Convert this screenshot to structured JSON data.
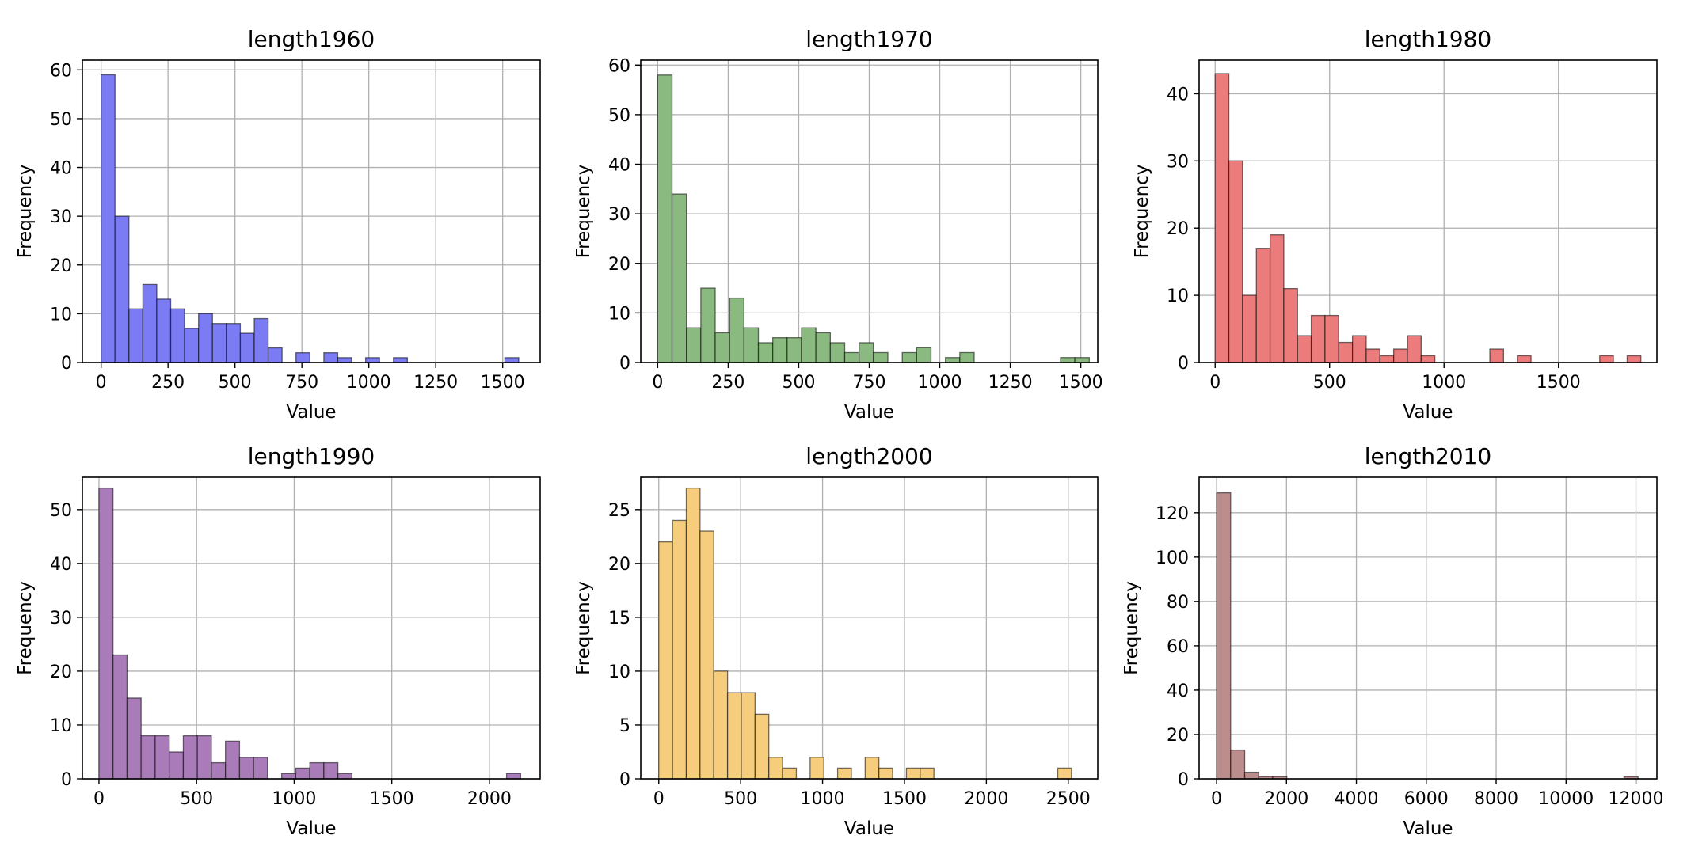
{
  "chart_data": [
    {
      "type": "bar",
      "title": "length1960",
      "xlabel": "Value",
      "ylabel": "Frequency",
      "color": "#7b7bf3",
      "grid": true,
      "xlim": [
        -70,
        1640
      ],
      "ylim": [
        0,
        62
      ],
      "xticks": [
        0,
        250,
        500,
        750,
        1000,
        1250,
        1500
      ],
      "yticks": [
        0,
        10,
        20,
        30,
        40,
        50,
        60
      ],
      "bin_start": 0,
      "bin_width": 52,
      "values": [
        59,
        30,
        11,
        16,
        13,
        11,
        7,
        10,
        8,
        8,
        6,
        9,
        3,
        0,
        2,
        0,
        2,
        1,
        0,
        1,
        0,
        1,
        0,
        0,
        0,
        0,
        0,
        0,
        0,
        1
      ]
    },
    {
      "type": "bar",
      "title": "length1970",
      "xlabel": "Value",
      "ylabel": "Frequency",
      "color": "#8bba80",
      "grid": true,
      "xlim": [
        -60,
        1560
      ],
      "ylim": [
        0,
        61
      ],
      "xticks": [
        0,
        250,
        500,
        750,
        1000,
        1250,
        1500
      ],
      "yticks": [
        0,
        10,
        20,
        30,
        40,
        50,
        60
      ],
      "bin_start": 0,
      "bin_width": 51,
      "values": [
        58,
        34,
        7,
        15,
        6,
        13,
        7,
        4,
        5,
        5,
        7,
        6,
        4,
        2,
        4,
        2,
        0,
        2,
        3,
        0,
        1,
        2,
        0,
        0,
        0,
        0,
        0,
        0,
        1,
        1
      ]
    },
    {
      "type": "bar",
      "title": "length1980",
      "xlabel": "Value",
      "ylabel": "Frequency",
      "color": "#ec7b7b",
      "grid": true,
      "xlim": [
        -70,
        1930
      ],
      "ylim": [
        0,
        45
      ],
      "xticks": [
        0,
        500,
        1000,
        1500
      ],
      "yticks": [
        0,
        10,
        20,
        30,
        40
      ],
      "bin_start": 0,
      "bin_width": 60,
      "values": [
        43,
        30,
        10,
        17,
        19,
        11,
        4,
        7,
        7,
        3,
        4,
        2,
        1,
        2,
        4,
        1,
        0,
        0,
        0,
        0,
        2,
        0,
        1,
        0,
        0,
        0,
        0,
        0,
        1,
        0,
        1
      ]
    },
    {
      "type": "bar",
      "title": "length1990",
      "xlabel": "Value",
      "ylabel": "Frequency",
      "color": "#a97cb9",
      "grid": true,
      "xlim": [
        -85,
        2260
      ],
      "ylim": [
        0,
        56
      ],
      "xticks": [
        0,
        500,
        1000,
        1500,
        2000
      ],
      "yticks": [
        0,
        10,
        20,
        30,
        40,
        50
      ],
      "bin_start": 0,
      "bin_width": 72,
      "values": [
        54,
        23,
        15,
        8,
        8,
        5,
        8,
        8,
        3,
        7,
        4,
        4,
        0,
        1,
        2,
        3,
        3,
        1,
        0,
        0,
        0,
        0,
        0,
        0,
        0,
        0,
        0,
        0,
        0,
        1
      ]
    },
    {
      "type": "bar",
      "title": "length2000",
      "xlabel": "Value",
      "ylabel": "Frequency",
      "color": "#f6cd7c",
      "grid": true,
      "xlim": [
        -110,
        2680
      ],
      "ylim": [
        0,
        28
      ],
      "xticks": [
        0,
        500,
        1000,
        1500,
        2000,
        2500
      ],
      "yticks": [
        0,
        5,
        10,
        15,
        20,
        25
      ],
      "bin_start": 0,
      "bin_width": 84,
      "values": [
        22,
        24,
        27,
        23,
        10,
        8,
        8,
        6,
        2,
        1,
        0,
        2,
        0,
        1,
        0,
        2,
        1,
        0,
        1,
        1,
        0,
        0,
        0,
        0,
        0,
        0,
        0,
        0,
        0,
        1
      ]
    },
    {
      "type": "bar",
      "title": "length2010",
      "xlabel": "Value",
      "ylabel": "Frequency",
      "color": "#bb8d8d",
      "grid": true,
      "xlim": [
        -500,
        12600
      ],
      "ylim": [
        0,
        136
      ],
      "xticks": [
        0,
        2000,
        4000,
        6000,
        8000,
        10000,
        12000
      ],
      "yticks": [
        0,
        20,
        40,
        60,
        80,
        100,
        120
      ],
      "bin_start": 0,
      "bin_width": 402,
      "values": [
        129,
        13,
        3,
        1,
        1,
        0,
        0,
        0,
        0,
        0,
        0,
        0,
        0,
        0,
        0,
        0,
        0,
        0,
        0,
        0,
        0,
        0,
        0,
        0,
        0,
        0,
        0,
        0,
        0,
        1
      ]
    }
  ]
}
